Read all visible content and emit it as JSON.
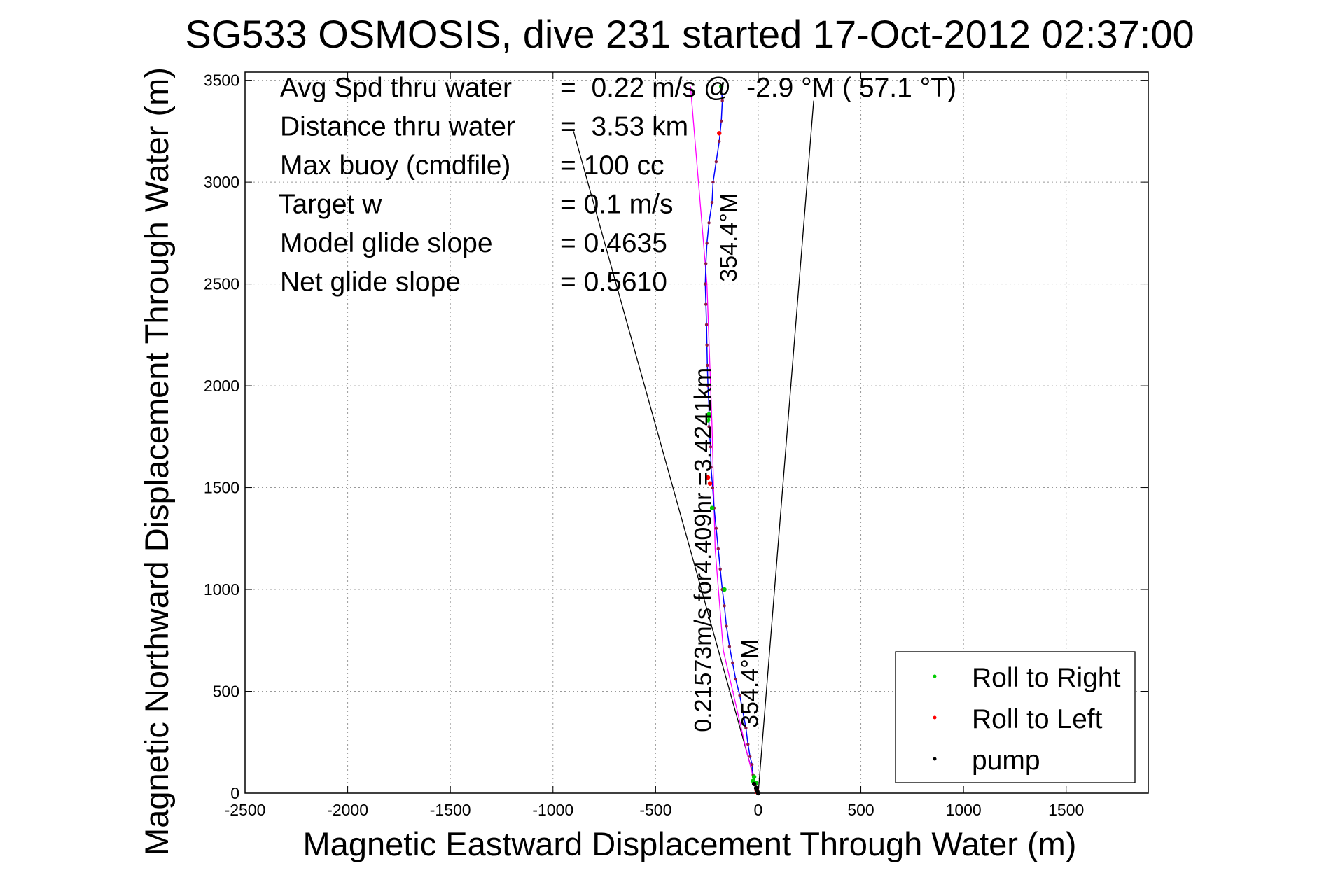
{
  "chart_data": {
    "type": "scatter",
    "title": "SG533 OSMOSIS, dive 231 started 17-Oct-2012 02:37:00",
    "xlabel": "Magnetic Eastward Displacement Through Water (m)",
    "ylabel": "Magnetic Northward Displacement Through Water (m)",
    "xlim": [
      -2500,
      1900
    ],
    "ylim": [
      0,
      3500
    ],
    "x_ticks": [
      -2500,
      -2000,
      -1500,
      -1000,
      -500,
      0,
      500,
      1000,
      1500
    ],
    "x_tick_labels": [
      "-2500",
      "-2000",
      "-1500",
      "-1000",
      "-500",
      "0",
      "500",
      "1000",
      "1500"
    ],
    "y_ticks": [
      0,
      500,
      1000,
      1500,
      2000,
      2500,
      3000,
      3500
    ],
    "y_tick_labels": [
      "0",
      "500",
      "1000",
      "1500",
      "2000",
      "2500",
      "3000",
      "3500"
    ],
    "grid": true,
    "legend_position": "bottom-right",
    "stats": [
      {
        "label": "Avg Spd thru water",
        "value": "=  0.22 m/s @  -2.9 °M ( 57.1 °T)"
      },
      {
        "label": "Distance thru water",
        "value": "=  3.53 km"
      },
      {
        "label": "Max buoy (cmdfile)",
        "value": "= 100 cc"
      },
      {
        "label": "Target w",
        "value": "= 0.1 m/s"
      },
      {
        "label": "Model glide slope",
        "value": "= 0.4635"
      },
      {
        "label": "Net glide slope",
        "value": "= 0.5610"
      }
    ],
    "annotations": [
      {
        "text": "354.4°M",
        "x": -105,
        "y": 2510,
        "rotation": -90
      },
      {
        "text": "0.21573m/s for4.409hr =3.4241km",
        "x": -230,
        "y": 300,
        "rotation": -90
      },
      {
        "text": "354.4°M",
        "x": -1,
        "y": 320,
        "rotation": -90
      }
    ],
    "lines": [
      {
        "name": "heading-line-left",
        "color": "#000000",
        "points": [
          [
            -900,
            3250
          ],
          [
            0,
            0
          ]
        ]
      },
      {
        "name": "heading-line-right",
        "color": "#000000",
        "points": [
          [
            270,
            3400
          ],
          [
            0,
            0
          ]
        ]
      },
      {
        "name": "track-magenta",
        "color": "#ff00ff",
        "points": [
          [
            -330,
            3470
          ],
          [
            -250,
            2500
          ],
          [
            -225,
            1800
          ],
          [
            -210,
            1200
          ],
          [
            -170,
            700
          ],
          [
            -60,
            220
          ],
          [
            -5,
            0
          ]
        ]
      }
    ],
    "series": [
      {
        "name": "track",
        "color": "#0000ff",
        "points": [
          [
            0,
            0
          ],
          [
            -15,
            40
          ],
          [
            -25,
            90
          ],
          [
            -30,
            140
          ],
          [
            -40,
            180
          ],
          [
            -50,
            240
          ],
          [
            -60,
            320
          ],
          [
            -75,
            400
          ],
          [
            -90,
            480
          ],
          [
            -110,
            560
          ],
          [
            -125,
            640
          ],
          [
            -140,
            720
          ],
          [
            -155,
            820
          ],
          [
            -165,
            920
          ],
          [
            -175,
            1000
          ],
          [
            -185,
            1100
          ],
          [
            -195,
            1200
          ],
          [
            -205,
            1300
          ],
          [
            -215,
            1400
          ],
          [
            -222,
            1500
          ],
          [
            -230,
            1600
          ],
          [
            -232,
            1700
          ],
          [
            -240,
            1800
          ],
          [
            -240,
            1900
          ],
          [
            -245,
            2000
          ],
          [
            -248,
            2100
          ],
          [
            -250,
            2200
          ],
          [
            -252,
            2300
          ],
          [
            -255,
            2400
          ],
          [
            -258,
            2500
          ],
          [
            -255,
            2600
          ],
          [
            -250,
            2700
          ],
          [
            -240,
            2800
          ],
          [
            -225,
            2900
          ],
          [
            -220,
            3000
          ],
          [
            -205,
            3100
          ],
          [
            -190,
            3200
          ],
          [
            -180,
            3300
          ],
          [
            -175,
            3400
          ],
          [
            -180,
            3470
          ]
        ]
      },
      {
        "name": "Roll to Right",
        "color": "#00cc00",
        "points": [
          [
            -180,
            3470
          ],
          [
            -240,
            1850
          ],
          [
            -245,
            1830
          ],
          [
            -240,
            1860
          ],
          [
            -225,
            1400
          ],
          [
            -165,
            1000
          ],
          [
            -20,
            80
          ],
          [
            -10,
            50
          ],
          [
            -25,
            60
          ]
        ]
      },
      {
        "name": "Roll to Left",
        "color": "#ff0000",
        "points": [
          [
            -190,
            3240
          ],
          [
            -235,
            1520
          ],
          [
            -245,
            1550
          ],
          [
            -5,
            5
          ],
          [
            -8,
            15
          ]
        ]
      },
      {
        "name": "pump",
        "color": "#000000",
        "points": [
          [
            0,
            0
          ],
          [
            -5,
            10
          ],
          [
            -10,
            25
          ],
          [
            -20,
            45
          ]
        ]
      }
    ],
    "legend": [
      {
        "name": "Roll to Right",
        "color": "#00cc00"
      },
      {
        "name": "Roll to Left",
        "color": "#ff0000"
      },
      {
        "name": "pump",
        "color": "#000000"
      }
    ]
  }
}
